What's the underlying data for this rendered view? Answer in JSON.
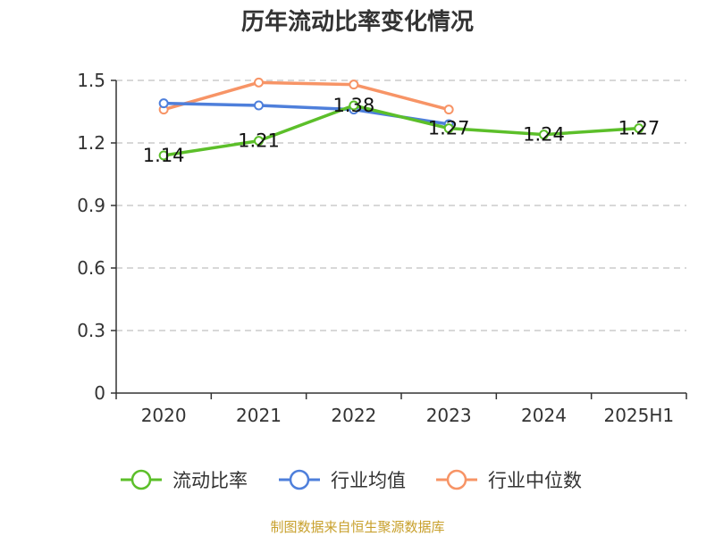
{
  "chart_data": {
    "type": "line",
    "title": "历年流动比率变化情况",
    "categories": [
      "2020",
      "2021",
      "2022",
      "2023",
      "2024",
      "2025H1"
    ],
    "y_ticks": [
      "0",
      "0.3",
      "0.6",
      "0.9",
      "1.2",
      "1.5"
    ],
    "ylim": [
      0,
      1.5
    ],
    "grid": true,
    "legend_position": "bottom",
    "series": [
      {
        "name": "流动比率",
        "color": "#5cbf2a",
        "values": [
          1.14,
          1.21,
          1.38,
          1.27,
          1.24,
          1.27
        ],
        "labels": [
          "1.14",
          "1.21",
          "1.38",
          "1.27",
          "1.24",
          "1.27"
        ]
      },
      {
        "name": "行业均值",
        "color": "#4e7fdb",
        "values": [
          1.39,
          1.38,
          1.36,
          1.29,
          null,
          null
        ]
      },
      {
        "name": "行业中位数",
        "color": "#f79466",
        "values": [
          1.36,
          1.49,
          1.48,
          1.36,
          null,
          null
        ]
      }
    ]
  },
  "source_text": "制图数据来自恒生聚源数据库"
}
